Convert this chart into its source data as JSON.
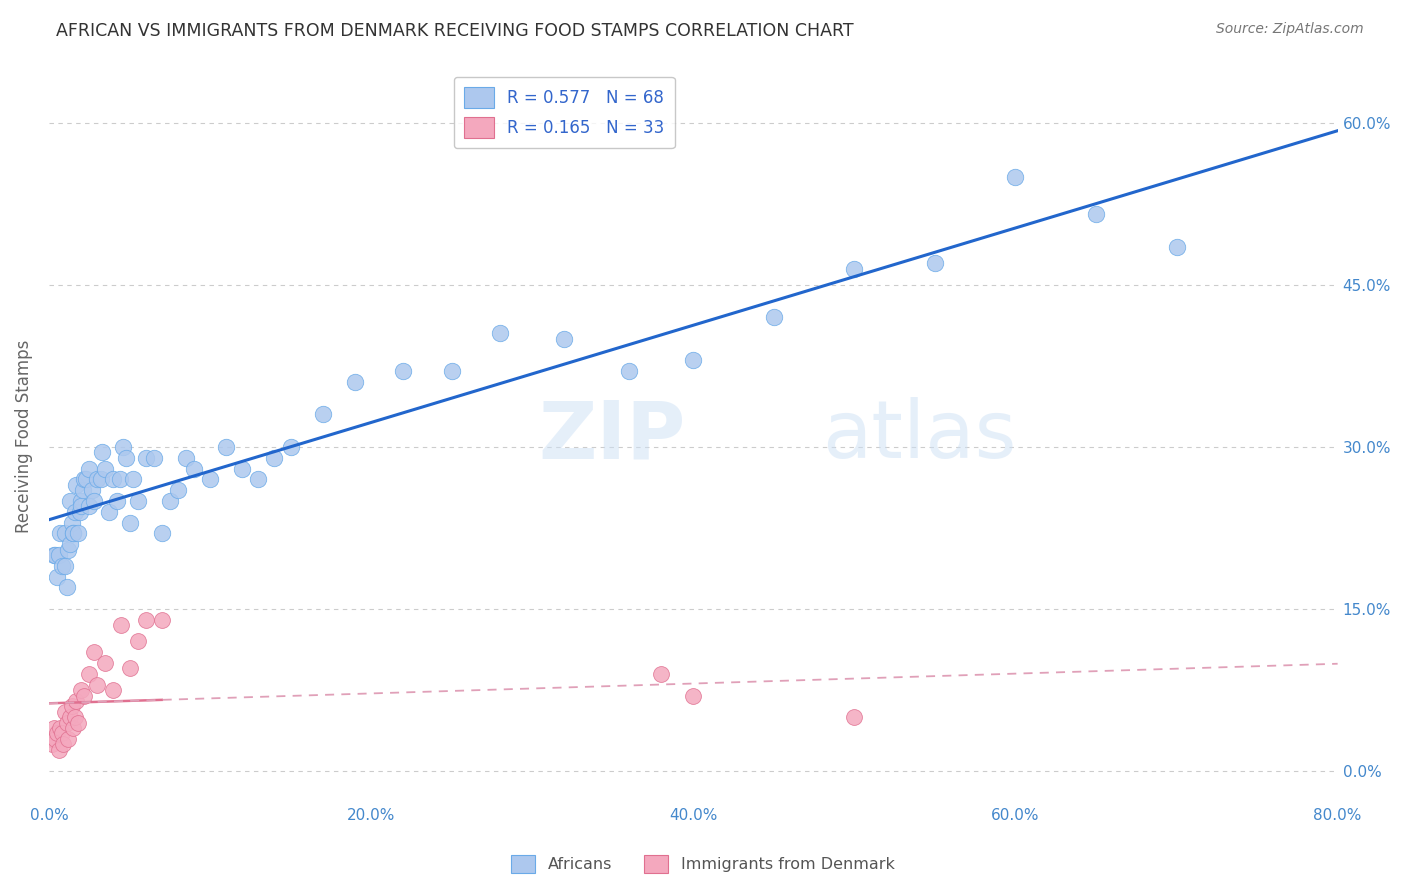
{
  "title": "AFRICAN VS IMMIGRANTS FROM DENMARK RECEIVING FOOD STAMPS CORRELATION CHART",
  "source": "Source: ZipAtlas.com",
  "ylabel_label": "Receiving Food Stamps",
  "watermark": "ZIPatlas",
  "legend_entry1_text": "R = 0.577   N = 68",
  "legend_entry2_text": "R = 0.165   N = 33",
  "africans_color": "#adc8ee",
  "africans_edge": "#6aaae8",
  "denmark_color": "#f4a8be",
  "denmark_edge": "#e07090",
  "trendline_african_color": "#2266cc",
  "trendline_denmark_color": "#e07090",
  "trendline_denmark_dash_color": "#e0a0b8",
  "background_color": "#ffffff",
  "grid_color": "#cccccc",
  "title_color": "#333333",
  "source_color": "#777777",
  "axis_label_color": "#666666",
  "tick_label_color": "#4488cc",
  "r_value_color": "#3366cc",
  "africans_x": [
    0.3,
    0.4,
    0.5,
    0.6,
    0.7,
    0.8,
    1.0,
    1.0,
    1.1,
    1.2,
    1.3,
    1.3,
    1.4,
    1.5,
    1.5,
    1.6,
    1.7,
    1.8,
    1.9,
    2.0,
    2.0,
    2.1,
    2.2,
    2.3,
    2.5,
    2.5,
    2.7,
    2.8,
    3.0,
    3.2,
    3.3,
    3.5,
    3.7,
    4.0,
    4.2,
    4.4,
    4.6,
    4.8,
    5.0,
    5.2,
    5.5,
    6.0,
    6.5,
    7.0,
    7.5,
    8.0,
    8.5,
    9.0,
    10.0,
    11.0,
    12.0,
    13.0,
    14.0,
    15.0,
    17.0,
    19.0,
    22.0,
    25.0,
    28.0,
    32.0,
    36.0,
    40.0,
    45.0,
    50.0,
    55.0,
    60.0,
    65.0,
    70.0
  ],
  "africans_y": [
    20.0,
    20.0,
    18.0,
    20.0,
    22.0,
    19.0,
    22.0,
    19.0,
    17.0,
    20.5,
    25.0,
    21.0,
    23.0,
    22.0,
    22.0,
    24.0,
    26.5,
    22.0,
    24.0,
    25.0,
    24.5,
    26.0,
    27.0,
    27.0,
    28.0,
    24.5,
    26.0,
    25.0,
    27.0,
    27.0,
    29.5,
    28.0,
    24.0,
    27.0,
    25.0,
    27.0,
    30.0,
    29.0,
    23.0,
    27.0,
    25.0,
    29.0,
    29.0,
    22.0,
    25.0,
    26.0,
    29.0,
    28.0,
    27.0,
    30.0,
    28.0,
    27.0,
    29.0,
    30.0,
    33.0,
    36.0,
    37.0,
    37.0,
    40.5,
    40.0,
    37.0,
    38.0,
    42.0,
    46.5,
    47.0,
    55.0,
    51.5,
    48.5
  ],
  "denmark_x": [
    0.1,
    0.2,
    0.3,
    0.4,
    0.5,
    0.6,
    0.7,
    0.8,
    0.9,
    1.0,
    1.1,
    1.2,
    1.3,
    1.4,
    1.5,
    1.6,
    1.7,
    1.8,
    2.0,
    2.2,
    2.5,
    2.8,
    3.0,
    3.5,
    4.0,
    4.5,
    5.0,
    5.5,
    6.0,
    7.0,
    40.0,
    50.0,
    38.0
  ],
  "denmark_y": [
    3.0,
    2.5,
    4.0,
    3.0,
    3.5,
    2.0,
    4.0,
    3.5,
    2.5,
    5.5,
    4.5,
    3.0,
    5.0,
    6.0,
    4.0,
    5.0,
    6.5,
    4.5,
    7.5,
    7.0,
    9.0,
    11.0,
    8.0,
    10.0,
    7.5,
    13.5,
    9.5,
    12.0,
    14.0,
    14.0,
    7.0,
    5.0,
    9.0
  ],
  "xlim": [
    0,
    80
  ],
  "ylim": [
    -3,
    65
  ],
  "x_ticks": [
    0,
    20,
    40,
    60,
    80
  ],
  "y_ticks": [
    0,
    15,
    30,
    45,
    60
  ]
}
